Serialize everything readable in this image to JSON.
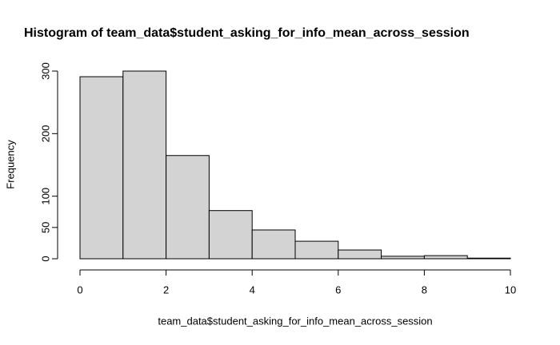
{
  "chart_data": {
    "type": "histogram",
    "title": "Histogram of team_data$student_asking_for_info_mean_across_session",
    "x_label": "team_data$student_asking_for_info_mean_across_session",
    "y_label": "Frequency",
    "bins": [
      0,
      1,
      2,
      3,
      4,
      5,
      6,
      7,
      8,
      9,
      10
    ],
    "values": [
      291,
      300,
      165,
      77,
      46,
      28,
      14,
      4,
      5,
      1
    ],
    "color": "#d3d3d3",
    "xlim": [
      0,
      10
    ],
    "xticks": [
      0,
      2,
      4,
      6,
      8,
      10
    ],
    "ylim": [
      0,
      300
    ],
    "yticks": [
      0,
      50,
      100,
      200,
      300
    ]
  }
}
